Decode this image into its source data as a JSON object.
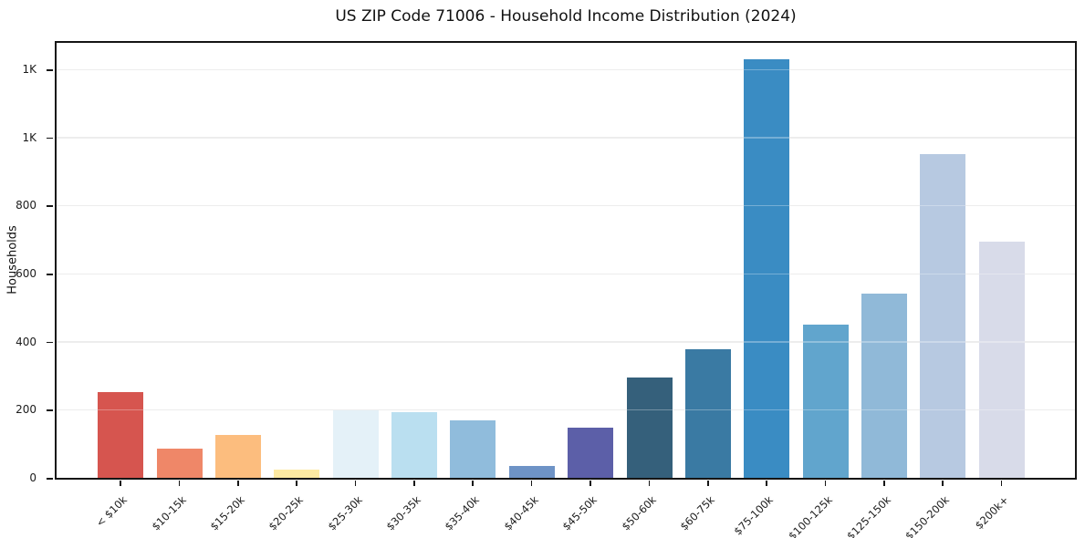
{
  "chart_data": {
    "type": "bar",
    "title": "US ZIP Code 71006 - Household Income Distribution (2024)",
    "xlabel": "",
    "ylabel": "Households",
    "categories": [
      "< $10k",
      "$10-15k",
      "$15-20k",
      "$20-25k",
      "$25-30k",
      "$30-35k",
      "$35-40k",
      "$40-45k",
      "$45-50k",
      "$50-60k",
      "$60-75k",
      "$75-100k",
      "$100-125k",
      "$125-150k",
      "$150-200k",
      "$200k+"
    ],
    "values": [
      253,
      85,
      127,
      25,
      198,
      192,
      170,
      35,
      147,
      295,
      378,
      1230,
      450,
      540,
      950,
      693
    ],
    "bar_colors": [
      "#d6554f",
      "#ef8768",
      "#fcbd7e",
      "#fce9a2",
      "#e4f1f8",
      "#badff0",
      "#90bcdc",
      "#6e93c6",
      "#5c5fa8",
      "#35607b",
      "#3a7aa3",
      "#3a8cc3",
      "#61a5cd",
      "#90b9d8",
      "#b7c9e1",
      "#d8dbe9"
    ],
    "ytick_values": [
      0,
      200,
      400,
      600,
      800,
      1000,
      1200
    ],
    "ytick_labels": [
      "0",
      "200",
      "400",
      "600",
      "800",
      "1K",
      "1K"
    ],
    "ylim": [
      0,
      1288
    ],
    "grid": "horizontal gridlines on",
    "legend": "none",
    "colors": {
      "background": "#ffffff",
      "spine": "#151515",
      "gridline": "#e5e5e5",
      "text": "#1c1c1c"
    }
  }
}
